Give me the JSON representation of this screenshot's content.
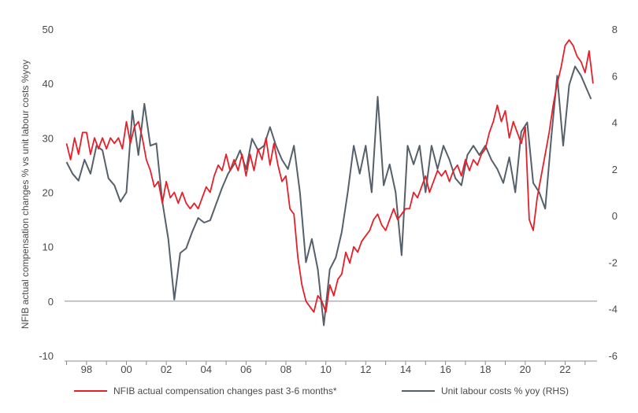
{
  "chart_data": {
    "type": "line",
    "title": "",
    "ylabel_left": "NFIB actual compensation changes % vs unit labour costs %yoy",
    "ylabel_right": "",
    "x_tick_labels": [
      "98",
      "00",
      "02",
      "04",
      "06",
      "08",
      "10",
      "12",
      "14",
      "16",
      "18",
      "20",
      "22"
    ],
    "x_tick_years": [
      1998,
      2000,
      2002,
      2004,
      2006,
      2008,
      2010,
      2012,
      2014,
      2016,
      2018,
      2020,
      2022
    ],
    "xlim": [
      1996.9,
      2023.6
    ],
    "y_left": {
      "lim": [
        -10,
        50
      ],
      "ticks": [
        -10,
        0,
        10,
        20,
        30,
        40,
        50
      ],
      "labels": [
        "-10",
        "0",
        "10",
        "20",
        "30",
        "40",
        "50"
      ]
    },
    "y_right": {
      "lim": [
        -6,
        8
      ],
      "ticks": [
        -6,
        -4,
        -2,
        0,
        2,
        4,
        6,
        8
      ],
      "labels": [
        "-6",
        "-4",
        "-2",
        "0",
        "2",
        "4",
        "6",
        "8"
      ]
    },
    "zero_line": 0,
    "grid": false,
    "legend_position": "bottom",
    "series": [
      {
        "name": "NFIB actual compensation changes past 3-6 months*",
        "axis": "left",
        "color": "#e4202a",
        "x": [
          1997.0,
          1997.2,
          1997.4,
          1997.6,
          1997.8,
          1998.0,
          1998.2,
          1998.4,
          1998.6,
          1998.8,
          1999.0,
          1999.2,
          1999.4,
          1999.6,
          1999.8,
          2000.0,
          2000.2,
          2000.4,
          2000.6,
          2000.8,
          2001.0,
          2001.2,
          2001.4,
          2001.6,
          2001.8,
          2002.0,
          2002.2,
          2002.4,
          2002.6,
          2002.8,
          2003.0,
          2003.2,
          2003.4,
          2003.6,
          2003.8,
          2004.0,
          2004.2,
          2004.4,
          2004.6,
          2004.8,
          2005.0,
          2005.2,
          2005.4,
          2005.6,
          2005.8,
          2006.0,
          2006.2,
          2006.4,
          2006.6,
          2006.8,
          2007.0,
          2007.2,
          2007.4,
          2007.6,
          2007.8,
          2008.0,
          2008.2,
          2008.4,
          2008.6,
          2008.8,
          2009.0,
          2009.2,
          2009.4,
          2009.6,
          2009.8,
          2010.0,
          2010.2,
          2010.4,
          2010.6,
          2010.8,
          2011.0,
          2011.2,
          2011.4,
          2011.6,
          2011.8,
          2012.0,
          2012.2,
          2012.4,
          2012.6,
          2012.8,
          2013.0,
          2013.2,
          2013.4,
          2013.6,
          2013.8,
          2014.0,
          2014.2,
          2014.4,
          2014.6,
          2014.8,
          2015.0,
          2015.2,
          2015.4,
          2015.6,
          2015.8,
          2016.0,
          2016.2,
          2016.4,
          2016.6,
          2016.8,
          2017.0,
          2017.2,
          2017.4,
          2017.6,
          2017.8,
          2018.0,
          2018.2,
          2018.4,
          2018.6,
          2018.8,
          2019.0,
          2019.2,
          2019.4,
          2019.6,
          2019.8,
          2020.0,
          2020.2,
          2020.4,
          2020.6,
          2020.8,
          2021.0,
          2021.2,
          2021.4,
          2021.6,
          2021.8,
          2022.0,
          2022.2,
          2022.4,
          2022.6,
          2022.8,
          2023.0,
          2023.2,
          2023.4
        ],
        "values": [
          29,
          26,
          30,
          27,
          31,
          31,
          27,
          30,
          28,
          30,
          28,
          30,
          29,
          30,
          28,
          33,
          29,
          32,
          33,
          30,
          26,
          24,
          21,
          22,
          18,
          22,
          19,
          20,
          18,
          20,
          18,
          17,
          18,
          17,
          19,
          21,
          20,
          23,
          25,
          24,
          27,
          24,
          26,
          24,
          27,
          23,
          27,
          24,
          28,
          26,
          30,
          25,
          29,
          25,
          22,
          23,
          17,
          16,
          8,
          3,
          0,
          -1,
          -2,
          1,
          0,
          -2,
          3,
          1,
          4,
          5,
          9,
          7,
          10,
          9,
          11,
          12,
          13,
          15,
          16,
          14,
          13,
          15,
          17,
          15,
          16,
          17,
          17,
          20,
          19,
          21,
          23,
          20,
          22,
          24,
          23,
          24,
          22,
          24,
          25,
          23,
          26,
          24,
          26,
          25,
          27,
          28,
          31,
          33,
          36,
          33,
          35,
          30,
          33,
          31,
          29,
          32,
          15,
          13,
          19,
          23,
          27,
          31,
          36,
          40,
          43,
          47,
          48,
          47,
          45,
          44,
          42,
          46,
          40
        ]
      },
      {
        "name": "Unit labour costs % yoy (RHS)",
        "axis": "right",
        "color": "#56606a",
        "x": [
          1997.0,
          1997.3,
          1997.6,
          1997.9,
          1998.2,
          1998.5,
          1998.8,
          1999.1,
          1999.4,
          1999.7,
          2000.0,
          2000.3,
          2000.6,
          2000.9,
          2001.2,
          2001.5,
          2001.8,
          2002.1,
          2002.4,
          2002.7,
          2003.0,
          2003.3,
          2003.6,
          2003.9,
          2004.2,
          2004.5,
          2004.8,
          2005.1,
          2005.4,
          2005.7,
          2006.0,
          2006.3,
          2006.6,
          2006.9,
          2007.2,
          2007.5,
          2007.8,
          2008.1,
          2008.4,
          2008.7,
          2009.0,
          2009.3,
          2009.6,
          2009.9,
          2010.2,
          2010.5,
          2010.8,
          2011.1,
          2011.4,
          2011.7,
          2012.0,
          2012.3,
          2012.6,
          2012.9,
          2013.2,
          2013.5,
          2013.8,
          2014.1,
          2014.4,
          2014.7,
          2015.0,
          2015.3,
          2015.6,
          2015.9,
          2016.2,
          2016.5,
          2016.8,
          2017.1,
          2017.4,
          2017.7,
          2018.0,
          2018.3,
          2018.6,
          2018.9,
          2019.2,
          2019.5,
          2019.8,
          2020.1,
          2020.4,
          2020.7,
          2021.0,
          2021.3,
          2021.6,
          2021.9,
          2022.2,
          2022.5,
          2022.8,
          2023.1,
          2023.3
        ],
        "values": [
          2.3,
          1.8,
          1.5,
          2.4,
          1.8,
          3.0,
          2.8,
          1.6,
          1.3,
          0.6,
          1.0,
          4.5,
          2.6,
          4.8,
          3.0,
          3.1,
          0.6,
          -1.0,
          -3.6,
          -1.6,
          -1.4,
          -0.7,
          -0.1,
          -0.3,
          -0.2,
          0.5,
          1.2,
          1.8,
          2.2,
          2.8,
          2.0,
          3.3,
          2.8,
          3.0,
          3.8,
          3.0,
          2.4,
          2.0,
          3.0,
          1.0,
          -2.0,
          -1.0,
          -2.3,
          -4.7,
          -2.3,
          -1.8,
          -0.7,
          1.0,
          3.0,
          1.8,
          3.0,
          1.0,
          5.1,
          1.3,
          2.2,
          1.0,
          -1.7,
          3.0,
          2.2,
          3.0,
          1.0,
          3.0,
          2.0,
          3.0,
          2.4,
          1.6,
          1.3,
          2.6,
          3.0,
          2.6,
          3.0,
          2.4,
          2.0,
          1.4,
          2.5,
          1.0,
          3.6,
          4.0,
          1.4,
          1.0,
          0.3,
          3.3,
          6.0,
          3.0,
          5.6,
          6.4,
          6.0,
          5.4,
          5.0
        ]
      }
    ]
  }
}
